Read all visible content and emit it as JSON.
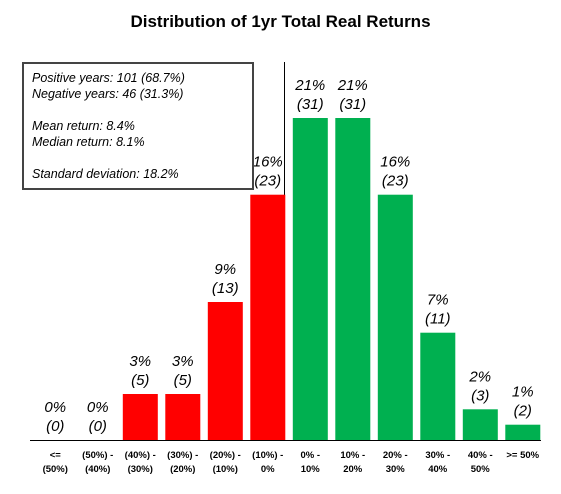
{
  "chart_data": {
    "type": "bar",
    "title": "Distribution of 1yr Total Real Returns",
    "xlabel": "",
    "ylabel": "",
    "ylim": [
      0,
      22
    ],
    "grid": false,
    "categories": [
      [
        "<=",
        "(50%)"
      ],
      [
        "(50%) -",
        "(40%)"
      ],
      [
        "(40%) -",
        "(30%)"
      ],
      [
        "(30%) -",
        "(20%)"
      ],
      [
        "(20%) -",
        "(10%)"
      ],
      [
        "(10%) -",
        "0%"
      ],
      [
        "0% -",
        "10%"
      ],
      [
        "10% -",
        "20%"
      ],
      [
        "20% -",
        "30%"
      ],
      [
        "30% -",
        "40%"
      ],
      [
        "40% -",
        "50%"
      ],
      [
        ">= 50%",
        ""
      ]
    ],
    "values": [
      0,
      0,
      3,
      3,
      9,
      16,
      21,
      21,
      16,
      7,
      2,
      1
    ],
    "pct_labels": [
      "0%",
      "0%",
      "3%",
      "3%",
      "9%",
      "16%",
      "21%",
      "21%",
      "16%",
      "7%",
      "2%",
      "1%"
    ],
    "count_labels": [
      "(0)",
      "(0)",
      "(5)",
      "(5)",
      "(13)",
      "(23)",
      "(31)",
      "(31)",
      "(23)",
      "(11)",
      "(3)",
      "(2)"
    ],
    "colors": [
      "#ff0000",
      "#ff0000",
      "#ff0000",
      "#ff0000",
      "#ff0000",
      "#ff0000",
      "#00b050",
      "#00b050",
      "#00b050",
      "#00b050",
      "#00b050",
      "#00b050"
    ]
  },
  "stats": {
    "positive": "Positive years: 101 (68.7%)",
    "negative": "Negative years: 46 (31.3%)",
    "mean": "Mean return: 8.4%",
    "median": "Median return: 8.1%",
    "stdev": "Standard deviation: 18.2%"
  }
}
